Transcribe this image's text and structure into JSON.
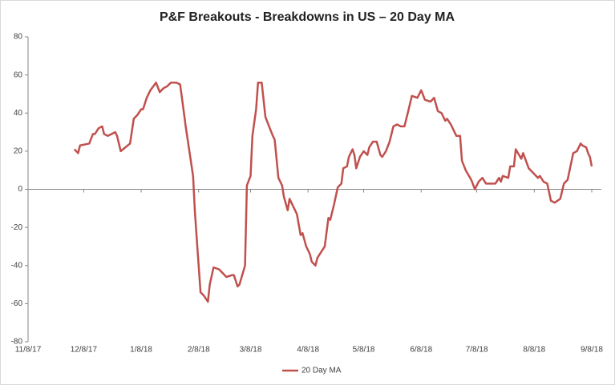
{
  "chart_data": {
    "type": "line",
    "title": "P&F Breakouts - Breakdowns in US – 20 Day MA",
    "x": [
      "12/3/17",
      "12/5/17",
      "12/6/17",
      "12/11/17",
      "12/13/17",
      "12/14/17",
      "12/16/17",
      "12/18/17",
      "12/19/17",
      "12/21/17",
      "12/25/17",
      "12/26/17",
      "12/28/17",
      "1/2/18",
      "1/4/18",
      "1/6/18",
      "1/8/18",
      "1/9/18",
      "1/11/18",
      "1/13/18",
      "1/16/18",
      "1/18/18",
      "1/20/18",
      "1/22/18",
      "1/24/18",
      "1/25/18",
      "1/27/18",
      "1/29/18",
      "1/30/18",
      "2/1/18",
      "2/3/18",
      "2/5/18",
      "2/6/18",
      "2/7/18",
      "2/9/18",
      "2/11/18",
      "2/13/18",
      "2/14/18",
      "2/16/18",
      "2/19/18",
      "2/21/18",
      "2/23/18",
      "2/26/18",
      "2/27/18",
      "3/1/18",
      "3/2/18",
      "3/5/18",
      "3/6/18",
      "3/8/18",
      "3/9/18",
      "3/11/18",
      "3/12/18",
      "3/14/18",
      "3/16/18",
      "3/18/18",
      "3/20/18",
      "3/21/18",
      "3/23/18",
      "3/25/18",
      "3/26/18",
      "3/28/18",
      "3/29/18",
      "3/31/18",
      "4/2/18",
      "4/4/18",
      "4/5/18",
      "4/7/18",
      "4/9/18",
      "4/10/18",
      "4/12/18",
      "4/13/18",
      "4/15/18",
      "4/17/18",
      "4/19/18",
      "4/20/18",
      "4/22/18",
      "4/24/18",
      "4/26/18",
      "4/27/18",
      "4/29/18",
      "4/30/18",
      "5/2/18",
      "5/3/18",
      "5/4/18",
      "5/6/18",
      "5/8/18",
      "5/10/18",
      "5/11/18",
      "5/13/18",
      "5/15/18",
      "5/17/18",
      "5/18/18",
      "5/20/18",
      "5/22/18",
      "5/24/18",
      "5/26/18",
      "5/28/18",
      "5/30/18",
      "6/1/18",
      "6/3/18",
      "6/6/18",
      "6/8/18",
      "6/10/18",
      "6/13/18",
      "6/15/18",
      "6/17/18",
      "6/19/18",
      "6/21/18",
      "6/22/18",
      "6/24/18",
      "6/27/18",
      "6/29/18",
      "6/30/18",
      "7/2/18",
      "7/5/18",
      "7/7/18",
      "7/9/18",
      "7/11/18",
      "7/13/18",
      "7/15/18",
      "7/18/18",
      "7/20/18",
      "7/21/18",
      "7/22/18",
      "7/25/18",
      "7/26/18",
      "7/28/18",
      "7/29/18",
      "8/1/18",
      "8/2/18",
      "8/5/18",
      "8/8/18",
      "8/10/18",
      "8/11/18",
      "8/13/18",
      "8/15/18",
      "8/17/18",
      "8/19/18",
      "8/22/18",
      "8/24/18",
      "8/26/18",
      "8/29/18",
      "8/31/18",
      "9/2/18",
      "9/3/18",
      "9/5/18",
      "9/6/18",
      "9/7/18",
      "9/8/18"
    ],
    "series": [
      {
        "name": "20 Day MA",
        "color": "#c0504d",
        "values": [
          21,
          19,
          23,
          24,
          29,
          29,
          32,
          33,
          29,
          28,
          30,
          28,
          20,
          24,
          37,
          39,
          42,
          42,
          48,
          52,
          56,
          51,
          53,
          54,
          56,
          56,
          56,
          55,
          48,
          33,
          20,
          7,
          -12,
          -26,
          -54,
          -56,
          -59,
          -50,
          -41,
          -42,
          -44,
          -46,
          -45,
          -45,
          -51,
          -50,
          -40,
          2,
          7,
          28,
          42,
          56,
          56,
          38,
          33,
          28,
          26,
          6,
          2,
          -4,
          -11,
          -5,
          -9,
          -13,
          -24,
          -23,
          -30,
          -34,
          -38,
          -40,
          -36,
          -33,
          -30,
          -15,
          -16,
          -8,
          1,
          3,
          11,
          12,
          17,
          21,
          18,
          11,
          17,
          20,
          18,
          22,
          25,
          25,
          18,
          17,
          20,
          25,
          33,
          34,
          33,
          33,
          41,
          49,
          48,
          52,
          47,
          46,
          48,
          41,
          40,
          36,
          37,
          34,
          28,
          28,
          15,
          10,
          5,
          0,
          4,
          6,
          3,
          3,
          3,
          6,
          4,
          7,
          6,
          12,
          12,
          21,
          16,
          19,
          11,
          8,
          6,
          7,
          4,
          3,
          -6,
          -7,
          -5,
          3,
          5,
          19,
          20,
          24,
          23,
          22,
          19,
          17,
          12
        ]
      }
    ],
    "xlim": [
      "11/8/17",
      "9/8/18"
    ],
    "xticks": [
      "11/8/17",
      "12/8/17",
      "1/8/18",
      "2/8/18",
      "3/8/18",
      "4/8/18",
      "5/8/18",
      "6/8/18",
      "7/8/18",
      "8/8/18",
      "9/8/18"
    ],
    "ylim": [
      -80,
      80
    ],
    "yticks": [
      -80,
      -60,
      -40,
      -20,
      0,
      20,
      40,
      60,
      80
    ],
    "grid": false,
    "legend": "bottom"
  }
}
